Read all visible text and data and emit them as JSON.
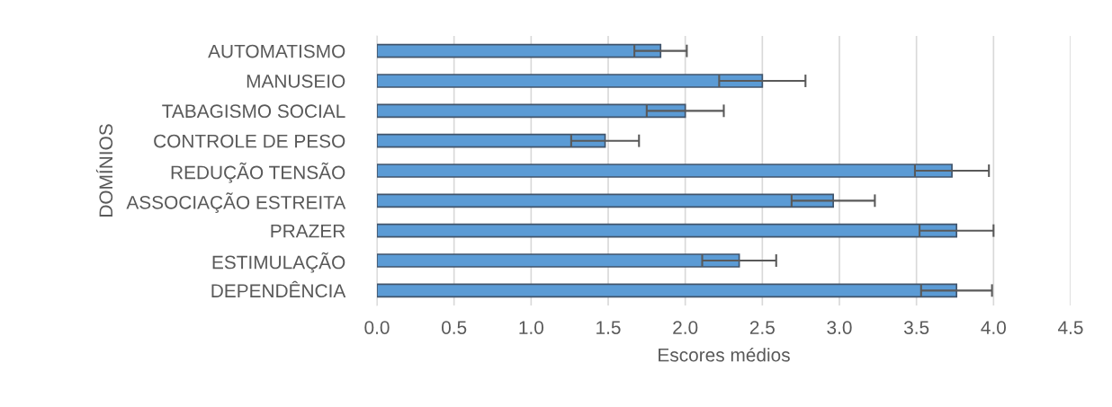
{
  "chart_data": {
    "type": "bar",
    "orientation": "horizontal",
    "xlabel": "Escores médios",
    "ylabel": "DOMÍNIOS",
    "categories": [
      "AUTOMATISMO",
      "MANUSEIO",
      "TABAGISMO SOCIAL",
      "CONTROLE DE PESO",
      "REDUÇÃO TENSÃO",
      "ASSOCIAÇÃO ESTREITA",
      "PRAZER",
      "ESTIMULAÇÃO",
      "DEPENDÊNCIA"
    ],
    "values": [
      1.84,
      2.5,
      2.0,
      1.48,
      3.73,
      2.96,
      3.76,
      2.35,
      3.76
    ],
    "errors": [
      0.17,
      0.28,
      0.25,
      0.22,
      0.24,
      0.27,
      0.24,
      0.24,
      0.23
    ],
    "color": "#5b9bd5",
    "xlim": [
      0,
      4.5
    ],
    "xticks": [
      {
        "value": 0,
        "label": "0.0"
      },
      {
        "value": 0.5,
        "label": "0.5"
      },
      {
        "value": 1,
        "label": "1.0"
      },
      {
        "value": 1.5,
        "label": "1.5"
      },
      {
        "value": 2,
        "label": "2.0"
      },
      {
        "value": 2.5,
        "label": "2.5"
      },
      {
        "value": 3,
        "label": "3.0"
      },
      {
        "value": 3.5,
        "label": "3.5"
      },
      {
        "value": 4,
        "label": "4.0"
      },
      {
        "value": 4.5,
        "label": "4.5"
      }
    ],
    "grid": "x"
  }
}
